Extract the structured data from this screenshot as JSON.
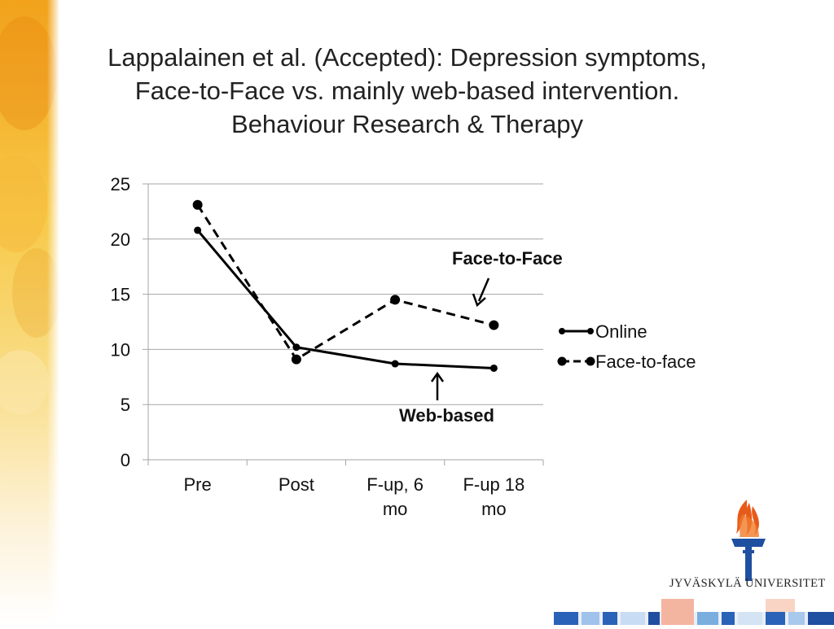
{
  "slide": {
    "title_lines": [
      "Lappalainen et al. (Accepted): Depression symptoms,",
      "Face-to-Face vs. mainly web-based intervention.",
      "Behaviour Research & Therapy"
    ],
    "logo_text": "JYVÄSKYLÄ UNIVERSITET"
  },
  "colors": {
    "line": "#000000",
    "grid": "#a6a6a6",
    "logo_flame": "#e85a1a",
    "logo_blue": "#1f4fa0"
  },
  "chart_data": {
    "type": "line",
    "categories": [
      "Pre",
      "Post",
      "F-up, 6 mo",
      "F-up 18 mo"
    ],
    "category_lines": [
      [
        "Pre"
      ],
      [
        "Post"
      ],
      [
        "F-up, 6",
        "mo"
      ],
      [
        "F-up 18",
        "mo"
      ]
    ],
    "series": [
      {
        "name": "Online",
        "values": [
          20.8,
          10.2,
          8.7,
          8.3
        ],
        "style": "solid"
      },
      {
        "name": "Face-to-face",
        "values": [
          23.1,
          9.1,
          14.5,
          12.2
        ],
        "style": "dashed"
      }
    ],
    "ylim": [
      0,
      25
    ],
    "yticks": [
      0,
      5,
      10,
      15,
      20,
      25
    ],
    "grid": true,
    "legend_position": "right",
    "annotations": [
      {
        "text": "Face-to-Face",
        "points_to": "Face-to-face",
        "position": "above"
      },
      {
        "text": "Web-based",
        "points_to": "Online",
        "position": "below"
      }
    ]
  }
}
